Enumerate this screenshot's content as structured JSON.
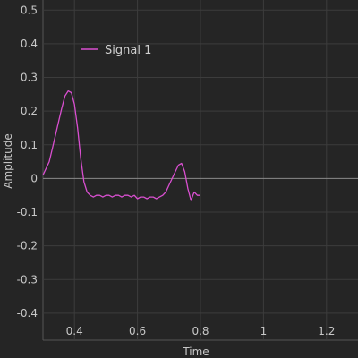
{
  "chart_data": {
    "type": "line",
    "title": "",
    "xlabel": "Time",
    "ylabel": "Amplitude",
    "xlim": [
      0.3,
      1.3
    ],
    "ylim": [
      -0.48,
      0.53
    ],
    "x_ticks": [
      0.4,
      0.6,
      0.8,
      1,
      1.2
    ],
    "x_tick_labels": [
      "0.4",
      "0.6",
      "0.8",
      "1",
      "1.2"
    ],
    "y_ticks": [
      0.5,
      0.4,
      0.3,
      0.2,
      0.1,
      0,
      -0.1,
      -0.2,
      -0.3,
      -0.4
    ],
    "y_tick_labels": [
      "0.5",
      "0.4",
      "0.3",
      "0.2",
      "0.1",
      "0",
      "-0.1",
      "-0.2",
      "-0.3",
      "-0.4"
    ],
    "grid": true,
    "legend_position": "top-left",
    "colors": {
      "background": "#252525",
      "grid": "#3c3c3c",
      "zero_line": "#8a8a8a",
      "text": "#c8c8c8",
      "series": "#d94fd0"
    },
    "series": [
      {
        "name": "Signal 1",
        "x": [
          0.3,
          0.31,
          0.32,
          0.33,
          0.34,
          0.35,
          0.36,
          0.37,
          0.38,
          0.39,
          0.4,
          0.41,
          0.42,
          0.43,
          0.44,
          0.45,
          0.46,
          0.47,
          0.48,
          0.49,
          0.5,
          0.51,
          0.52,
          0.53,
          0.54,
          0.55,
          0.56,
          0.57,
          0.58,
          0.59,
          0.6,
          0.61,
          0.62,
          0.63,
          0.64,
          0.65,
          0.66,
          0.67,
          0.68,
          0.69,
          0.7,
          0.71,
          0.72,
          0.73,
          0.74,
          0.75,
          0.76,
          0.77,
          0.78,
          0.79,
          0.8
        ],
        "y": [
          0.01,
          0.03,
          0.05,
          0.09,
          0.13,
          0.17,
          0.21,
          0.245,
          0.26,
          0.255,
          0.22,
          0.15,
          0.06,
          -0.01,
          -0.04,
          -0.05,
          -0.055,
          -0.05,
          -0.05,
          -0.055,
          -0.05,
          -0.05,
          -0.055,
          -0.05,
          -0.05,
          -0.055,
          -0.05,
          -0.05,
          -0.055,
          -0.05,
          -0.06,
          -0.055,
          -0.055,
          -0.06,
          -0.055,
          -0.055,
          -0.06,
          -0.055,
          -0.05,
          -0.04,
          -0.02,
          0.0,
          0.02,
          0.04,
          0.045,
          0.02,
          -0.03,
          -0.065,
          -0.04,
          -0.05,
          -0.05
        ]
      }
    ]
  }
}
